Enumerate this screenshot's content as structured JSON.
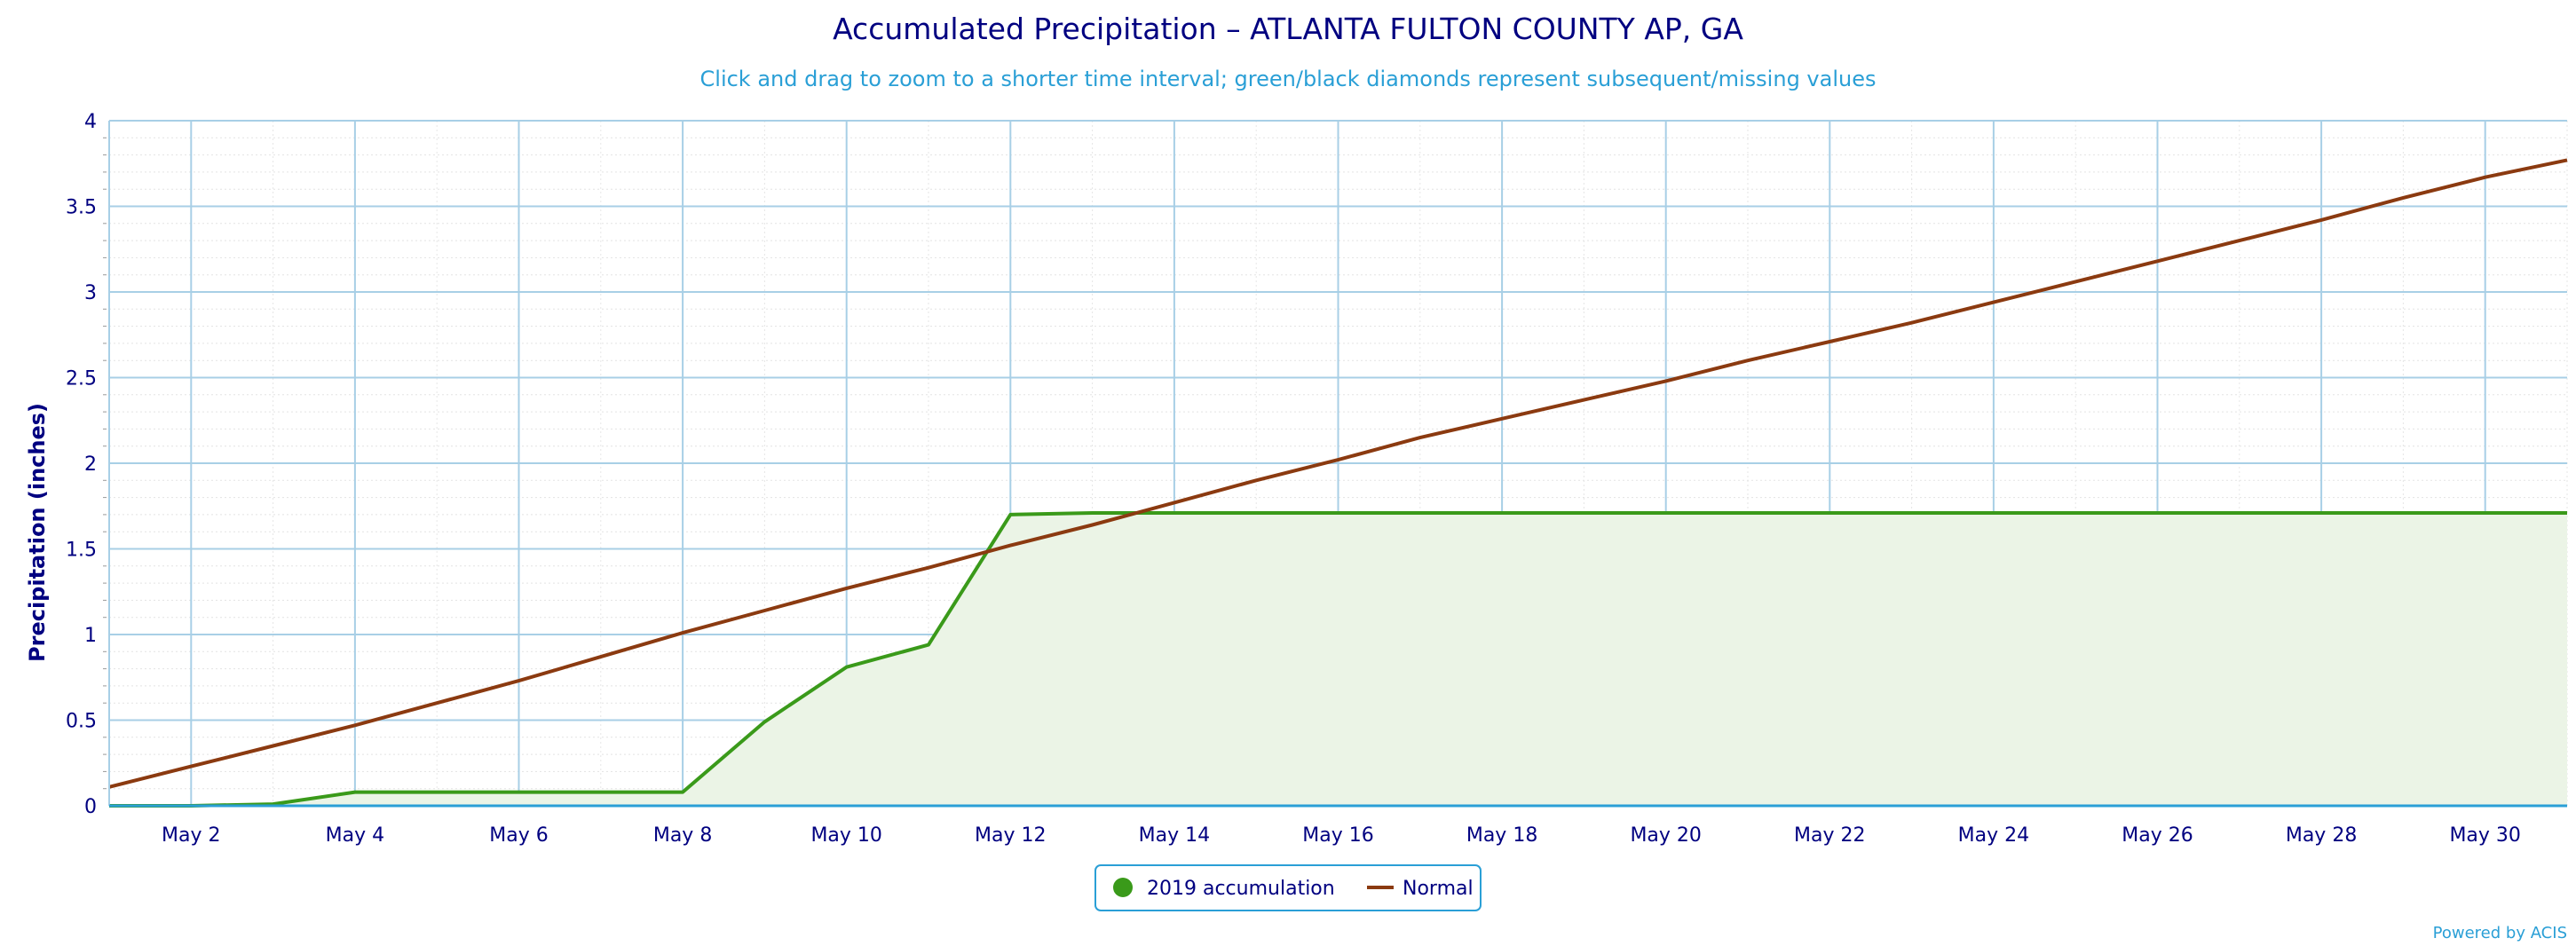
{
  "chart_data": {
    "type": "area",
    "title": "Accumulated Precipitation – ATLANTA FULTON COUNTY AP, GA",
    "subtitle": "Click and drag to zoom to a shorter time interval; green/black diamonds represent subsequent/missing values",
    "xlabel": "",
    "ylabel": "Precipitation (inches)",
    "xlim": [
      1,
      31
    ],
    "ylim": [
      0,
      4
    ],
    "x_ticks": [
      {
        "value": 2,
        "label": "May 2"
      },
      {
        "value": 4,
        "label": "May 4"
      },
      {
        "value": 6,
        "label": "May 6"
      },
      {
        "value": 8,
        "label": "May 8"
      },
      {
        "value": 10,
        "label": "May 10"
      },
      {
        "value": 12,
        "label": "May 12"
      },
      {
        "value": 14,
        "label": "May 14"
      },
      {
        "value": 16,
        "label": "May 16"
      },
      {
        "value": 18,
        "label": "May 18"
      },
      {
        "value": 20,
        "label": "May 20"
      },
      {
        "value": 22,
        "label": "May 22"
      },
      {
        "value": 24,
        "label": "May 24"
      },
      {
        "value": 26,
        "label": "May 26"
      },
      {
        "value": 28,
        "label": "May 28"
      },
      {
        "value": 30,
        "label": "May 30"
      }
    ],
    "y_ticks": [
      {
        "value": 0,
        "label": "0"
      },
      {
        "value": 0.5,
        "label": "0.5"
      },
      {
        "value": 1,
        "label": "1"
      },
      {
        "value": 1.5,
        "label": "1.5"
      },
      {
        "value": 2,
        "label": "2"
      },
      {
        "value": 2.5,
        "label": "2.5"
      },
      {
        "value": 3,
        "label": "3"
      },
      {
        "value": 3.5,
        "label": "3.5"
      },
      {
        "value": 4,
        "label": "4"
      }
    ],
    "grid": true,
    "legend_position": "bottom-center",
    "series": [
      {
        "name": "2019 accumulation",
        "type": "area",
        "color": "#3a9a1a",
        "fill": "#ebf4e6",
        "x": [
          1,
          2,
          3,
          4,
          5,
          6,
          7,
          8,
          9,
          10,
          11,
          12,
          13,
          14,
          15,
          16,
          17,
          18,
          19,
          20,
          21,
          22,
          23,
          24,
          25,
          26,
          27,
          28,
          29,
          30,
          31
        ],
        "values": [
          0,
          0,
          0.01,
          0.08,
          0.08,
          0.08,
          0.08,
          0.08,
          0.49,
          0.81,
          0.94,
          1.7,
          1.71,
          1.71,
          1.71,
          1.71,
          1.71,
          1.71,
          1.71,
          1.71,
          1.71,
          1.71,
          1.71,
          1.71,
          1.71,
          1.71,
          1.71,
          1.71,
          1.71,
          1.71,
          1.71
        ]
      },
      {
        "name": "Normal",
        "type": "line",
        "color": "#8b3a10",
        "x": [
          1,
          2,
          3,
          4,
          5,
          6,
          7,
          8,
          9,
          10,
          11,
          12,
          13,
          14,
          15,
          16,
          17,
          18,
          19,
          20,
          21,
          22,
          23,
          24,
          25,
          26,
          27,
          28,
          29,
          30,
          31
        ],
        "values": [
          0.11,
          0.23,
          0.35,
          0.47,
          0.6,
          0.73,
          0.87,
          1.01,
          1.14,
          1.27,
          1.39,
          1.52,
          1.64,
          1.77,
          1.9,
          2.02,
          2.15,
          2.26,
          2.37,
          2.48,
          2.6,
          2.71,
          2.82,
          2.94,
          3.06,
          3.18,
          3.3,
          3.42,
          3.55,
          3.67,
          3.77
        ]
      }
    ]
  },
  "legend": {
    "items": [
      {
        "label": "2019 accumulation",
        "symbol": "circle",
        "color": "#3a9a1a"
      },
      {
        "label": "Normal",
        "symbol": "line",
        "color": "#8b3a10"
      }
    ]
  },
  "credit": "Powered by ACIS"
}
